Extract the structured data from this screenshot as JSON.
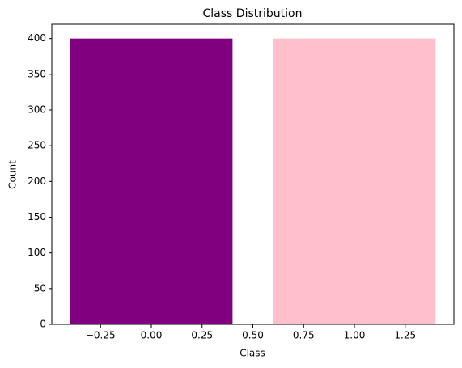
{
  "chart_data": {
    "type": "bar",
    "title": "Class Distribution",
    "x_label": "Class",
    "y_label": "Count",
    "x": [
      0,
      1
    ],
    "values": [
      400,
      400
    ],
    "colors": [
      "#800080",
      "#ffc0cb"
    ],
    "bar_width": 0.8,
    "xlim": [
      -0.49,
      1.49
    ],
    "xticks": [
      {
        "value": -0.25,
        "label": "−0.25"
      },
      {
        "value": 0,
        "label": "0.00"
      },
      {
        "value": 0.25,
        "label": "0.25"
      },
      {
        "value": 0.5,
        "label": "0.50"
      },
      {
        "value": 0.75,
        "label": "0.75"
      },
      {
        "value": 1,
        "label": "1.00"
      },
      {
        "value": 1.25,
        "label": "1.25"
      }
    ],
    "ylim": [
      0,
      420
    ],
    "yticks": [
      0,
      50,
      100,
      150,
      200,
      250,
      300,
      350,
      400
    ],
    "grid": false
  }
}
